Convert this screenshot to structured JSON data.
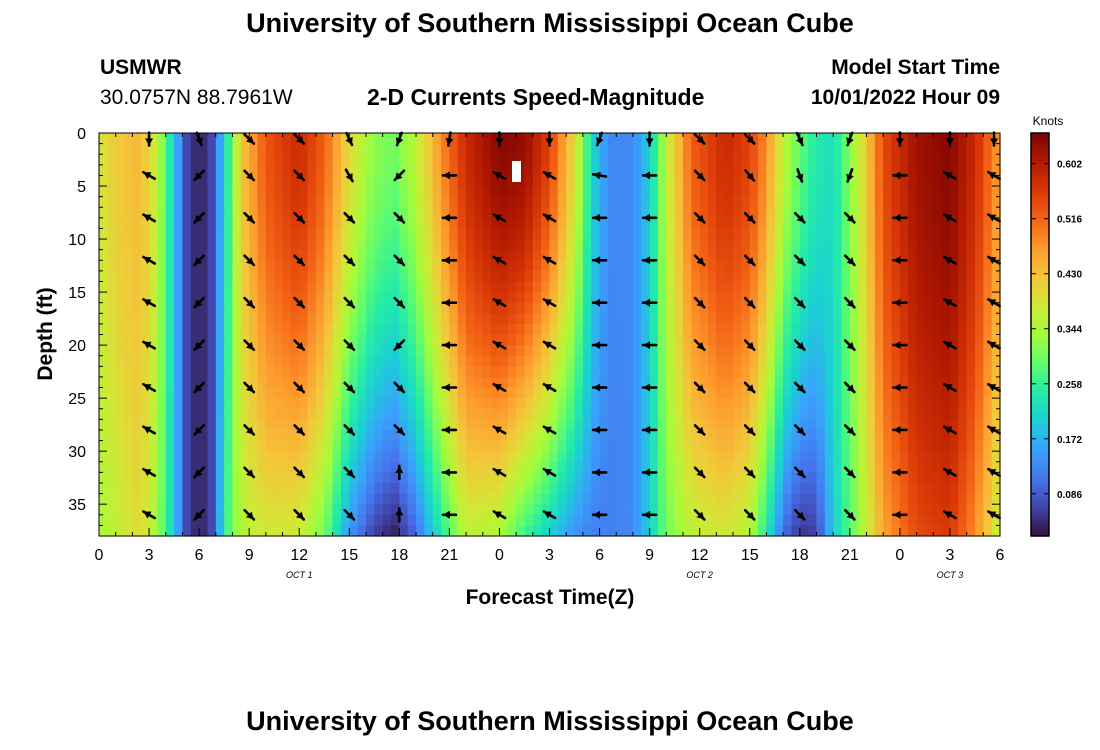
{
  "header": {
    "title": "University of Southern Mississippi Ocean Cube",
    "station_name": "USMWR",
    "station_coords": "30.0757N  88.7961W",
    "subtitle": "2-D Currents Speed-Magnitude",
    "model_start_label": "Model Start Time",
    "model_start_value": "10/01/2022 Hour 09"
  },
  "footer": {
    "title": "University of Southern Mississippi Ocean Cube"
  },
  "chart_data": {
    "type": "heatmap",
    "title": "2-D Currents Speed-Magnitude",
    "xlabel": "Forecast Time(Z)",
    "ylabel": "Depth (ft)",
    "xlim": [
      0,
      54
    ],
    "ylim": [
      38,
      0
    ],
    "x_ticks": [
      0,
      3,
      6,
      9,
      12,
      15,
      18,
      21,
      24,
      27,
      30,
      33,
      36,
      39,
      42,
      45,
      48,
      51,
      54
    ],
    "x_tick_labels": [
      "0",
      "3",
      "6",
      "9",
      "12",
      "15",
      "18",
      "21",
      "0",
      "3",
      "6",
      "9",
      "12",
      "15",
      "18",
      "21",
      "0",
      "3",
      "6"
    ],
    "date_labels": [
      {
        "x": 12,
        "text": "OCT 1"
      },
      {
        "x": 36,
        "text": "OCT 2"
      },
      {
        "x": 51,
        "text": "OCT 3"
      }
    ],
    "y_ticks": [
      0,
      5,
      10,
      15,
      20,
      25,
      30,
      35
    ],
    "y_tick_labels": [
      "0",
      "5",
      "10",
      "15",
      "20",
      "25",
      "30",
      "35"
    ],
    "colorbar": {
      "label": "Knots",
      "range": [
        0.02,
        0.65
      ],
      "ticks": [
        0.086,
        0.172,
        0.258,
        0.344,
        0.43,
        0.516,
        0.602
      ],
      "tick_labels": [
        "0.086",
        "0.172",
        "0.258",
        "0.344",
        "0.430",
        "0.516",
        "0.602"
      ],
      "colormap": [
        "#30123b",
        "#4145ab",
        "#4675ed",
        "#39a2fc",
        "#1bcfd4",
        "#24eca6",
        "#61fc6c",
        "#a4fc3b",
        "#d1e834",
        "#f3c63a",
        "#fe9b2d",
        "#f36315",
        "#d93806",
        "#b11901",
        "#7a0402"
      ]
    },
    "speed_time_profile": [
      {
        "t": 0,
        "surface": 0.38,
        "bottom": 0.34
      },
      {
        "t": 1,
        "surface": 0.42,
        "bottom": 0.36
      },
      {
        "t": 2.5,
        "surface": 0.44,
        "bottom": 0.4
      },
      {
        "t": 3.5,
        "surface": 0.36,
        "bottom": 0.33
      },
      {
        "t": 4.5,
        "surface": 0.2,
        "bottom": 0.2
      },
      {
        "t": 5.2,
        "surface": 0.07,
        "bottom": 0.07
      },
      {
        "t": 6,
        "surface": 0.03,
        "bottom": 0.03
      },
      {
        "t": 6.8,
        "surface": 0.07,
        "bottom": 0.07
      },
      {
        "t": 7.6,
        "surface": 0.22,
        "bottom": 0.26
      },
      {
        "t": 8.5,
        "surface": 0.42,
        "bottom": 0.35
      },
      {
        "t": 10,
        "surface": 0.53,
        "bottom": 0.38
      },
      {
        "t": 12,
        "surface": 0.58,
        "bottom": 0.37
      },
      {
        "t": 13.5,
        "surface": 0.52,
        "bottom": 0.3
      },
      {
        "t": 15,
        "surface": 0.4,
        "bottom": 0.14
      },
      {
        "t": 16.5,
        "surface": 0.32,
        "bottom": 0.06
      },
      {
        "t": 17.7,
        "surface": 0.3,
        "bottom": 0.03
      },
      {
        "t": 19,
        "surface": 0.36,
        "bottom": 0.1
      },
      {
        "t": 20.5,
        "surface": 0.48,
        "bottom": 0.24
      },
      {
        "t": 22,
        "surface": 0.58,
        "bottom": 0.36
      },
      {
        "t": 24,
        "surface": 0.64,
        "bottom": 0.34
      },
      {
        "t": 25.5,
        "surface": 0.63,
        "bottom": 0.26
      },
      {
        "t": 27,
        "surface": 0.55,
        "bottom": 0.2
      },
      {
        "t": 28.5,
        "surface": 0.4,
        "bottom": 0.14
      },
      {
        "t": 29.5,
        "surface": 0.22,
        "bottom": 0.12
      },
      {
        "t": 30.5,
        "surface": 0.13,
        "bottom": 0.12
      },
      {
        "t": 32,
        "surface": 0.13,
        "bottom": 0.13
      },
      {
        "t": 33,
        "surface": 0.2,
        "bottom": 0.2
      },
      {
        "t": 34,
        "surface": 0.36,
        "bottom": 0.3
      },
      {
        "t": 35.5,
        "surface": 0.52,
        "bottom": 0.36
      },
      {
        "t": 37.5,
        "surface": 0.58,
        "bottom": 0.38
      },
      {
        "t": 39,
        "surface": 0.55,
        "bottom": 0.35
      },
      {
        "t": 40,
        "surface": 0.48,
        "bottom": 0.24
      },
      {
        "t": 41,
        "surface": 0.36,
        "bottom": 0.1
      },
      {
        "t": 42,
        "surface": 0.29,
        "bottom": 0.05
      },
      {
        "t": 43,
        "surface": 0.24,
        "bottom": 0.06
      },
      {
        "t": 44,
        "surface": 0.22,
        "bottom": 0.2
      },
      {
        "t": 45.5,
        "surface": 0.36,
        "bottom": 0.32
      },
      {
        "t": 47,
        "surface": 0.54,
        "bottom": 0.46
      },
      {
        "t": 49,
        "surface": 0.62,
        "bottom": 0.54
      },
      {
        "t": 51,
        "surface": 0.64,
        "bottom": 0.56
      },
      {
        "t": 52.5,
        "surface": 0.58,
        "bottom": 0.48
      },
      {
        "t": 54,
        "surface": 0.46,
        "bottom": 0.36
      }
    ],
    "arrow_times": [
      3,
      6,
      9,
      12,
      15,
      18,
      21,
      24,
      27,
      30,
      33,
      36,
      39,
      42,
      45,
      48,
      51,
      54
    ],
    "arrow_depths": [
      0,
      4,
      8,
      12,
      16,
      20,
      24,
      28,
      32,
      36
    ],
    "arrow_directions_deg": [
      [
        180,
        160,
        135,
        135,
        155,
        200,
        190,
        180,
        180,
        200,
        180,
        135,
        135,
        155,
        200,
        180,
        180,
        180
      ],
      [
        300,
        225,
        135,
        135,
        150,
        225,
        270,
        300,
        300,
        280,
        270,
        135,
        140,
        160,
        200,
        270,
        300,
        300
      ],
      [
        300,
        225,
        135,
        135,
        135,
        135,
        270,
        300,
        300,
        270,
        270,
        135,
        135,
        135,
        135,
        270,
        300,
        300
      ],
      [
        300,
        225,
        135,
        135,
        135,
        135,
        270,
        300,
        300,
        270,
        270,
        135,
        135,
        135,
        135,
        270,
        300,
        300
      ],
      [
        300,
        225,
        135,
        135,
        135,
        135,
        270,
        300,
        300,
        270,
        270,
        135,
        135,
        135,
        135,
        270,
        300,
        300
      ],
      [
        300,
        225,
        135,
        135,
        135,
        225,
        270,
        300,
        300,
        270,
        270,
        135,
        135,
        135,
        135,
        270,
        300,
        300
      ],
      [
        300,
        225,
        135,
        135,
        135,
        135,
        270,
        300,
        300,
        270,
        270,
        135,
        135,
        135,
        135,
        270,
        300,
        300
      ],
      [
        300,
        225,
        135,
        135,
        135,
        135,
        270,
        300,
        300,
        270,
        270,
        135,
        135,
        135,
        135,
        270,
        300,
        300
      ],
      [
        300,
        225,
        135,
        135,
        135,
        0,
        270,
        300,
        300,
        270,
        270,
        135,
        135,
        135,
        135,
        270,
        300,
        300
      ],
      [
        300,
        225,
        135,
        135,
        135,
        0,
        270,
        300,
        300,
        270,
        270,
        135,
        135,
        135,
        135,
        270,
        300,
        300
      ]
    ]
  }
}
